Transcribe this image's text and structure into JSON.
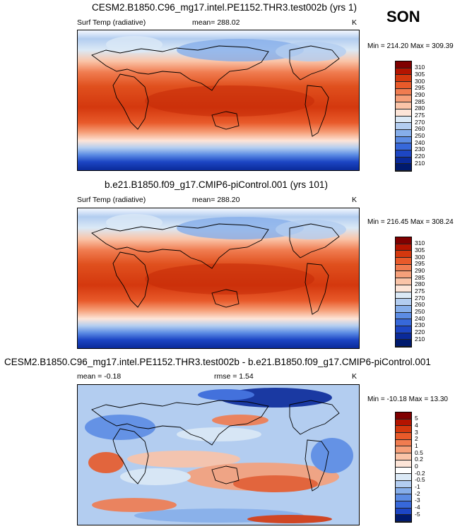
{
  "season": "SON",
  "units": "K",
  "panels": [
    {
      "title": "CESM2.B1850.C96_mg17.intel.PE1152.THR3.test002b (yrs 1)",
      "variable": "Surf Temp (radiative)",
      "stat": "mean= 288.02",
      "units": "K",
      "minmax": "Min = 214.20 Max = 309.39",
      "colorbar": {
        "labels": [
          "310",
          "305",
          "300",
          "295",
          "290",
          "285",
          "280",
          "275",
          "270",
          "260",
          "250",
          "240",
          "230",
          "220",
          "210"
        ],
        "colors": [
          "#800000",
          "#b41400",
          "#d4380e",
          "#e85a2a",
          "#f07c50",
          "#f6a07a",
          "#fac4a8",
          "#fde5d8",
          "#dbe9f6",
          "#b3cdf0",
          "#86aeea",
          "#5c8ce4",
          "#3768da",
          "#1d46c4",
          "#0a2a9a",
          "#001a6e"
        ]
      }
    },
    {
      "title": "b.e21.B1850.f09_g17.CMIP6-piControl.001 (yrs 101)",
      "variable": "Surf Temp (radiative)",
      "stat": "mean= 288.20",
      "units": "K",
      "minmax": "Min = 216.45 Max = 308.24",
      "colorbar": {
        "labels": [
          "310",
          "305",
          "300",
          "295",
          "290",
          "285",
          "280",
          "275",
          "270",
          "260",
          "250",
          "240",
          "230",
          "220",
          "210"
        ],
        "colors": [
          "#800000",
          "#b41400",
          "#d4380e",
          "#e85a2a",
          "#f07c50",
          "#f6a07a",
          "#fac4a8",
          "#fde5d8",
          "#dbe9f6",
          "#b3cdf0",
          "#86aeea",
          "#5c8ce4",
          "#3768da",
          "#1d46c4",
          "#0a2a9a",
          "#001a6e"
        ]
      }
    },
    {
      "title": "CESM2.B1850.C96_mg17.intel.PE1152.THR3.test002b - b.e21.B1850.f09_g17.CMIP6-piControl.001",
      "stat": "mean =  -0.18",
      "rmse": "rmse =   1.54",
      "units": "K",
      "minmax": "Min = -10.18 Max =  13.30",
      "colorbar": {
        "labels": [
          "5",
          "4",
          "3",
          "2",
          "1",
          "0.5",
          "0.2",
          "0",
          "-0.2",
          "-0.5",
          "-1",
          "-2",
          "-3",
          "-4",
          "-5"
        ],
        "colors": [
          "#800000",
          "#b41400",
          "#d4380e",
          "#e85a2a",
          "#f07c50",
          "#f6a07a",
          "#fac4a8",
          "#fde5d8",
          "#ffffff",
          "#dbe9f6",
          "#b3cdf0",
          "#86aeea",
          "#5c8ce4",
          "#3768da",
          "#1d46c4",
          "#001a6e"
        ]
      }
    }
  ]
}
